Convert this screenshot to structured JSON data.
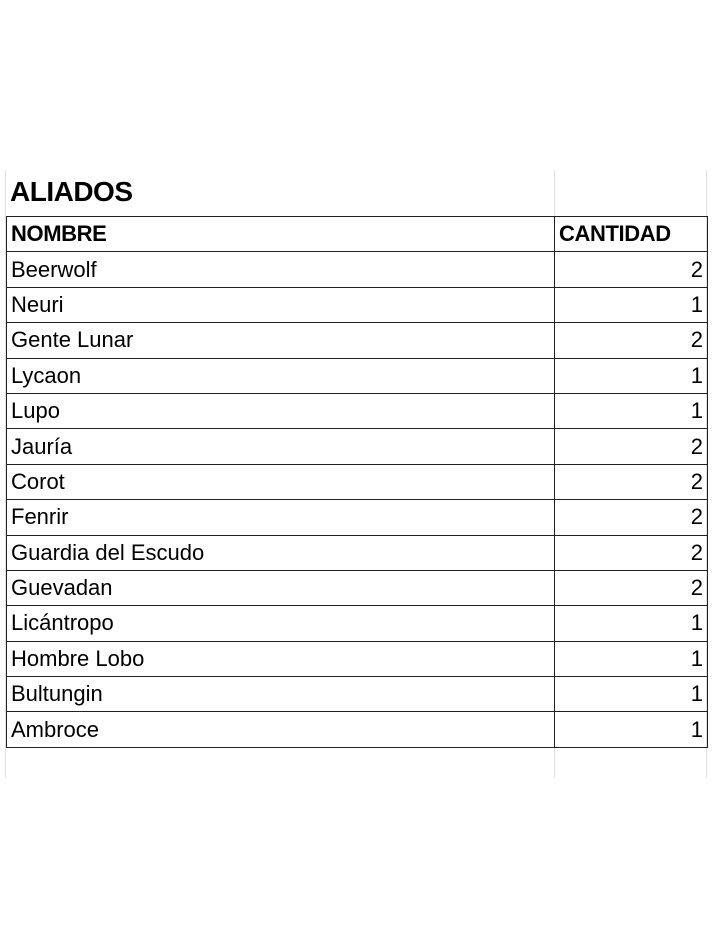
{
  "title": "ALIADOS",
  "columns": [
    "NOMBRE",
    "CANTIDAD"
  ],
  "rows": [
    {
      "nombre": "Beerwolf",
      "cantidad": "2"
    },
    {
      "nombre": "Neuri",
      "cantidad": "1"
    },
    {
      "nombre": "Gente Lunar",
      "cantidad": "2"
    },
    {
      "nombre": "Lycaon",
      "cantidad": "1"
    },
    {
      "nombre": "Lupo",
      "cantidad": "1"
    },
    {
      "nombre": "Jauría",
      "cantidad": "2"
    },
    {
      "nombre": "Corot",
      "cantidad": "2"
    },
    {
      "nombre": "Fenrir",
      "cantidad": "2"
    },
    {
      "nombre": "Guardia del Escudo",
      "cantidad": "2"
    },
    {
      "nombre": "Guevadan",
      "cantidad": "2"
    },
    {
      "nombre": "Licántropo",
      "cantidad": "1"
    },
    {
      "nombre": "Hombre Lobo",
      "cantidad": "1"
    },
    {
      "nombre": "Bultungin",
      "cantidad": "1"
    },
    {
      "nombre": "Ambroce",
      "cantidad": "1"
    }
  ]
}
